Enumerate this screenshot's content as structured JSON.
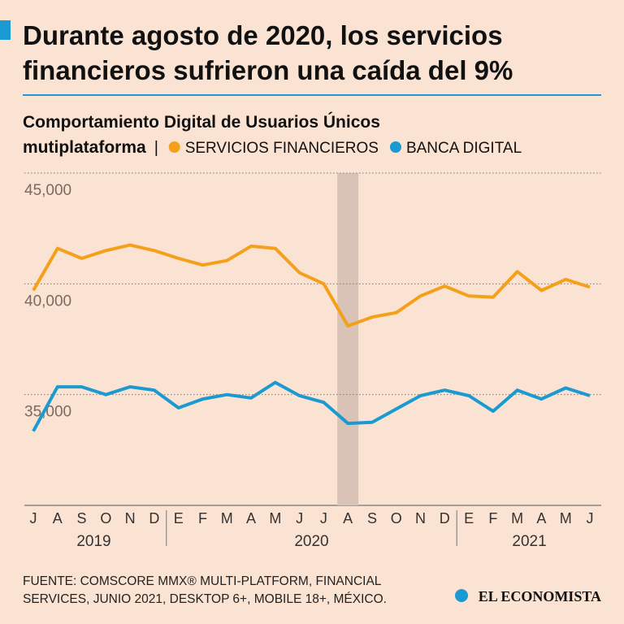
{
  "chart_data": {
    "type": "line",
    "title": [
      "Durante agosto de 2020, los servicios",
      "financieros sufrieron una caída del 9%"
    ],
    "subtitle": [
      "Comportamiento Digital de Usuarios Únicos",
      "mutiplataforma"
    ],
    "categories": [
      "J",
      "A",
      "S",
      "O",
      "N",
      "D",
      "E",
      "F",
      "M",
      "A",
      "M",
      "J",
      "J",
      "A",
      "S",
      "O",
      "N",
      "D",
      "E",
      "F",
      "M",
      "A",
      "M",
      "J"
    ],
    "x_groups": [
      {
        "label": "2019",
        "start": 0,
        "end": 5
      },
      {
        "label": "2020",
        "start": 6,
        "end": 17
      },
      {
        "label": "2021",
        "start": 18,
        "end": 23
      }
    ],
    "highlight_index": 13,
    "series": [
      {
        "name": "SERVICIOS FINANCIEROS",
        "color": "#f5a01a",
        "values": [
          39700,
          41600,
          41150,
          41500,
          41750,
          41500,
          41150,
          40850,
          41050,
          41700,
          41600,
          40500,
          40000,
          38100,
          38500,
          38700,
          39450,
          39900,
          39450,
          39400,
          40550,
          39700,
          40200,
          39850
        ]
      },
      {
        "name": "BANCA DIGITAL",
        "color": "#1a9ad0",
        "values": [
          33350,
          35350,
          35350,
          35000,
          35350,
          35200,
          34400,
          34800,
          35000,
          34850,
          35550,
          34950,
          34650,
          33700,
          33750,
          34350,
          34950,
          35200,
          34950,
          34250,
          35200,
          34800,
          35300,
          34950
        ]
      }
    ],
    "ylim": [
      30000,
      45000
    ],
    "yticks": [
      {
        "value": 35000,
        "label": "35,000"
      },
      {
        "value": 40000,
        "label": "40,000"
      },
      {
        "value": 45000,
        "label": "45,000"
      }
    ],
    "grid": true,
    "source": [
      "FUENTE: COMSCORE MMX® MULTI-PLATFORM, FINANCIAL",
      "SERVICES, JUNIO 2021, DESKTOP 6+, MOBILE 18+, MÉXICO."
    ],
    "brand": "EL ECONOMISTA"
  }
}
